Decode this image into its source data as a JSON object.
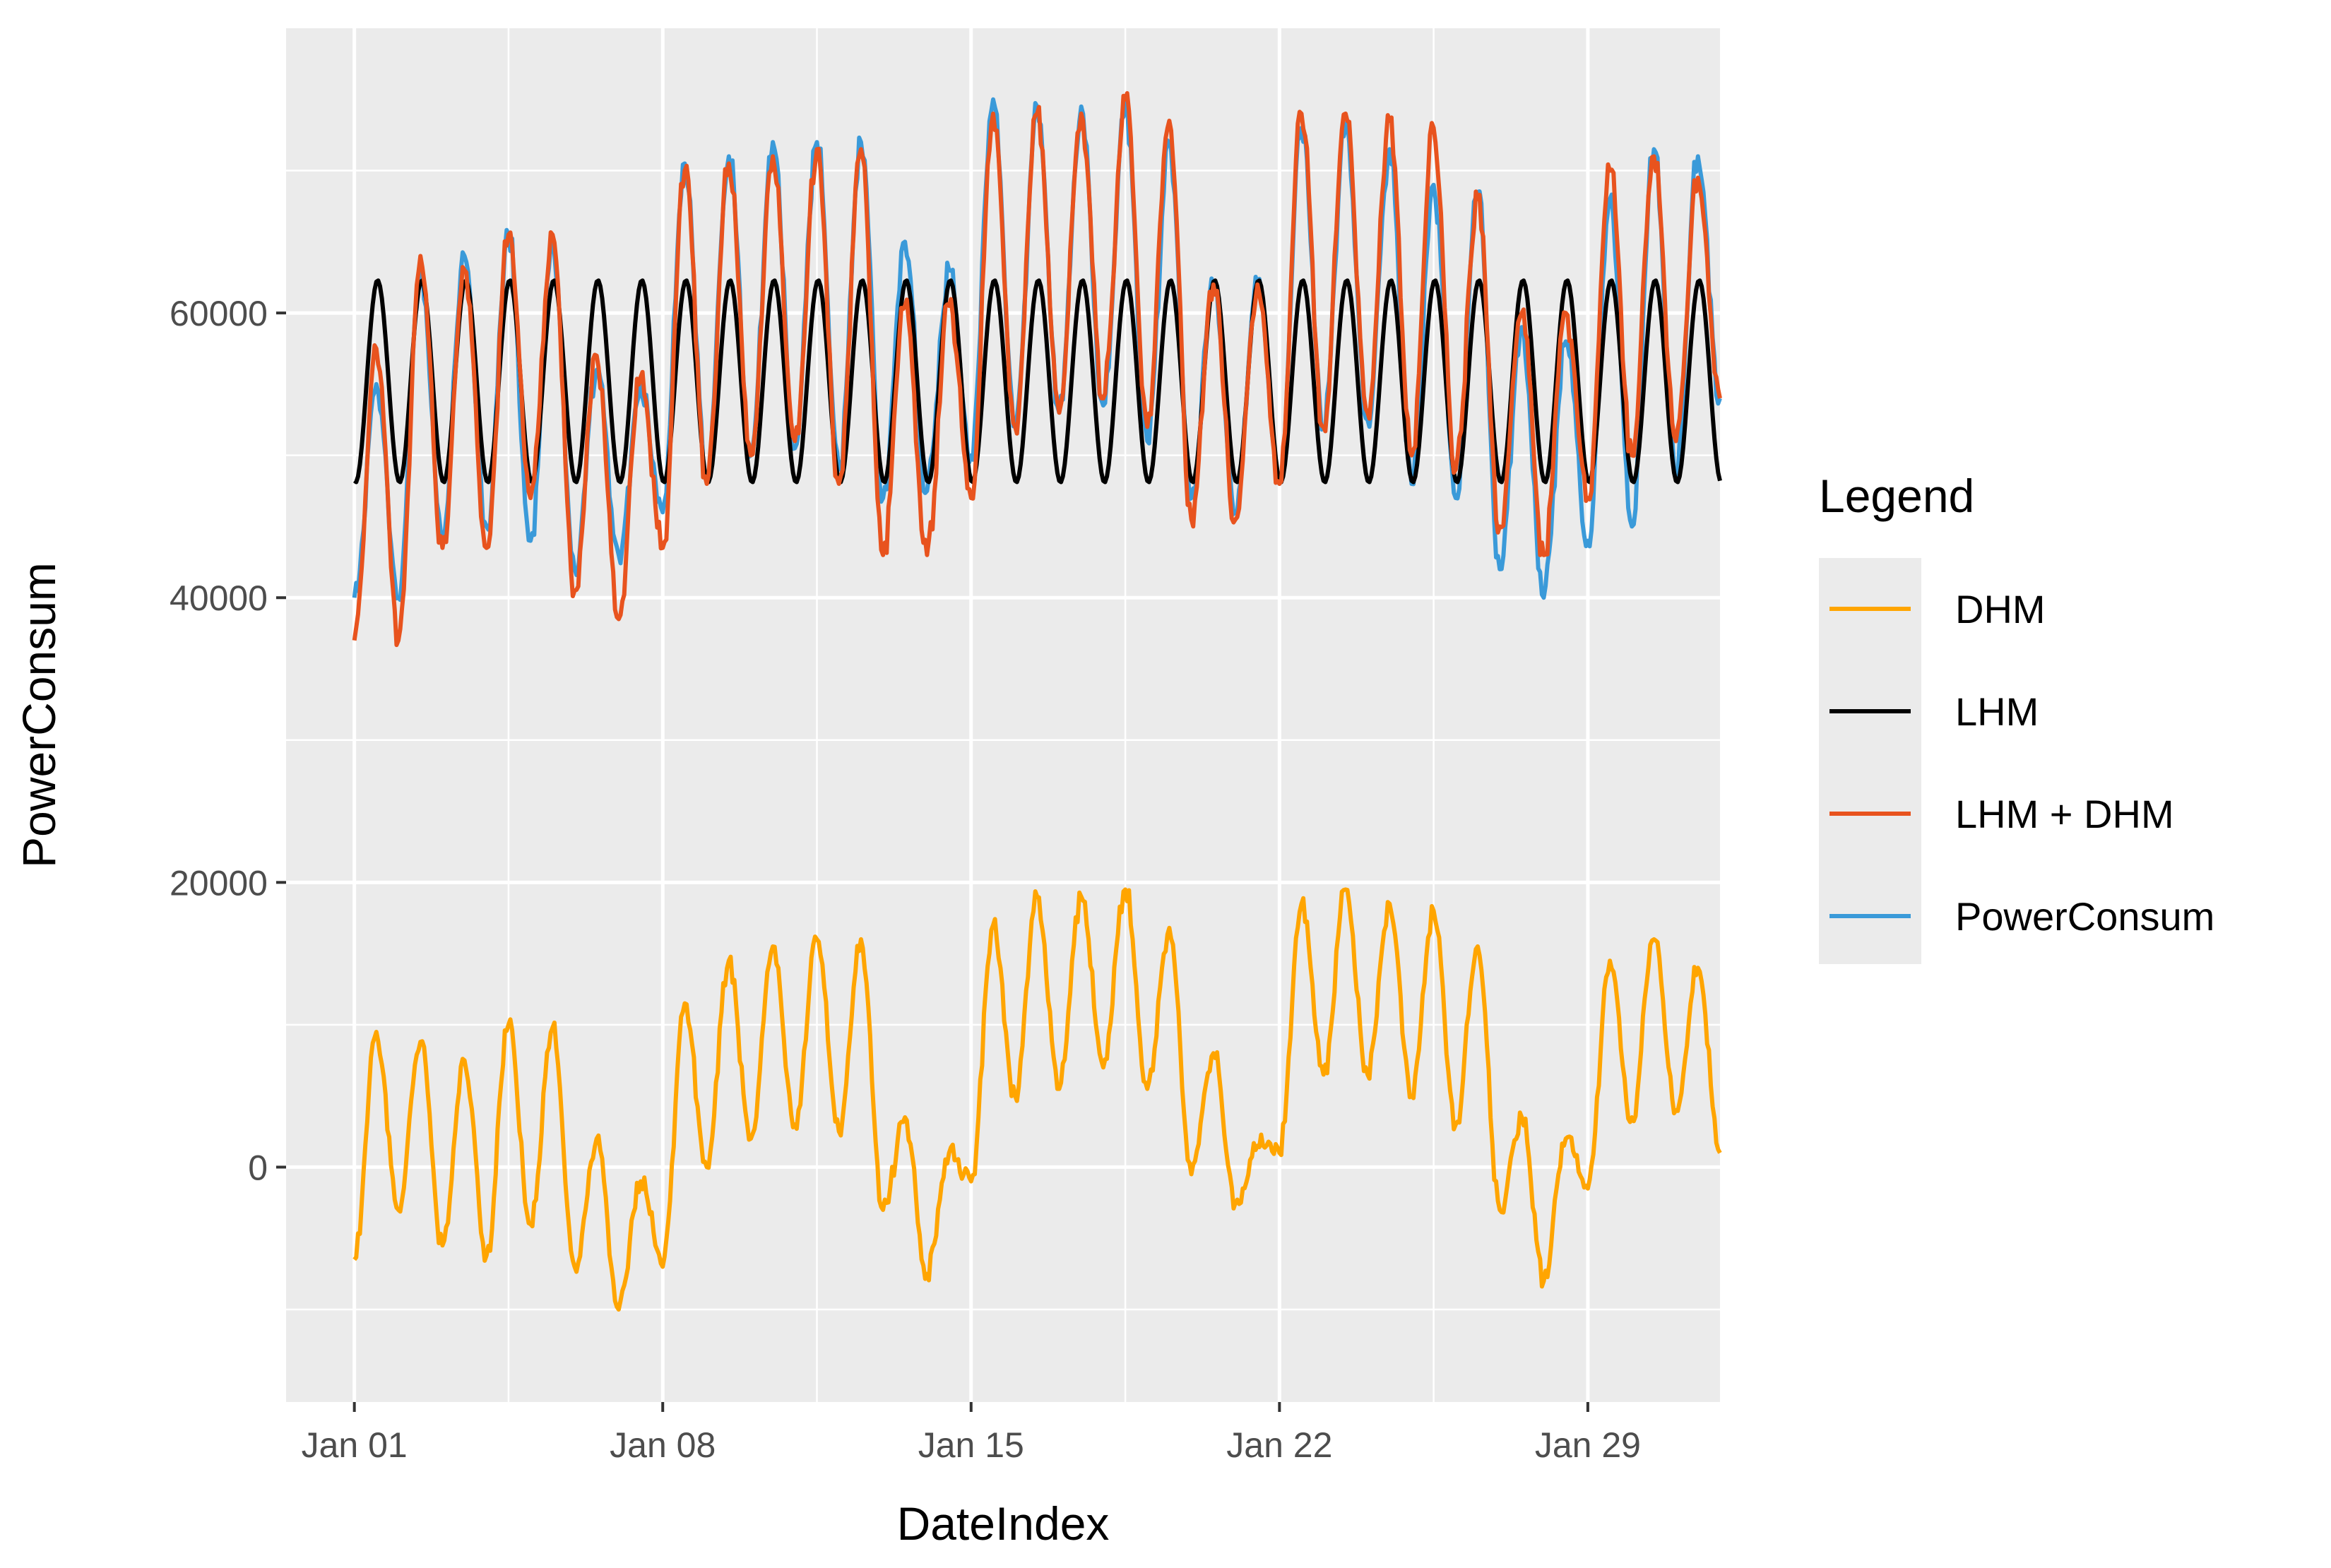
{
  "chart_data": {
    "type": "line",
    "xlabel": "DateIndex",
    "ylabel": "PowerConsum",
    "x_tick_labels": [
      "Jan 01",
      "Jan 08",
      "Jan 15",
      "Jan 22",
      "Jan 29"
    ],
    "x_tick_days": [
      1,
      8,
      15,
      22,
      29
    ],
    "y_ticks": [
      0,
      20000,
      40000,
      60000
    ],
    "y_tick_labels": [
      "0",
      "20000",
      "40000",
      "60000"
    ],
    "xlim": [
      -0.55,
      32.0
    ],
    "ylim": [
      -16500,
      80000
    ],
    "x_start": "Jan 01 00:00",
    "x_end": "Jan 31 23:00",
    "x_unit": "day of January",
    "grid": true,
    "legend": {
      "title": "Legend",
      "position": "right",
      "entries": [
        "DHM",
        "LHM",
        "LHM + DHM",
        "PowerConsum"
      ]
    },
    "series": [
      {
        "name": "DHM",
        "color": "#FFA500",
        "x": [
          1,
          1.5,
          2,
          2.5,
          3,
          3.5,
          4,
          4.5,
          5,
          5.5,
          6,
          6.5,
          7,
          7.5,
          8,
          8.5,
          9,
          9.5,
          10,
          10.5,
          11,
          11.5,
          12,
          12.5,
          13,
          13.5,
          14,
          14.5,
          15,
          15.5,
          16,
          16.5,
          17,
          17.5,
          18,
          18.5,
          19,
          19.5,
          20,
          20.5,
          21,
          21.5,
          22,
          22.5,
          23,
          23.5,
          24,
          24.5,
          25,
          25.5,
          26,
          26.5,
          27,
          27.5,
          28,
          28.5,
          29,
          29.5,
          30,
          30.5,
          31,
          31.5,
          32
        ],
        "values": [
          -6500,
          9500,
          -3000,
          8800,
          -5500,
          7500,
          -6200,
          10000,
          -4000,
          9800,
          -7000,
          2000,
          -10000,
          -1000,
          -7000,
          11500,
          0,
          14500,
          2000,
          15500,
          3000,
          16000,
          2500,
          16000,
          -3000,
          3500,
          -7500,
          1000,
          -1000,
          17000,
          5000,
          19000,
          5500,
          19000,
          7000,
          19500,
          5500,
          16800,
          -500,
          8000,
          -2500,
          1500,
          1000,
          18500,
          6500,
          19500,
          6500,
          18500,
          5000,
          18000,
          3000,
          15500,
          -3000,
          3500,
          -8000,
          2000,
          -1500,
          14500,
          3500,
          16000,
          4000,
          14000,
          1000
        ],
        "peak_note": "peak/trough sequence, half-day resolution"
      },
      {
        "name": "LHM",
        "color": "#000000",
        "mean": 55200,
        "amplitude": 7100,
        "period_days": 1
      },
      {
        "name": "LHM + DHM",
        "color": "#E8531E",
        "x": [
          1,
          1.5,
          2,
          2.5,
          3,
          3.5,
          4,
          4.5,
          5,
          5.5,
          6,
          6.5,
          7,
          7.5,
          8,
          8.5,
          9,
          9.5,
          10,
          10.5,
          11,
          11.5,
          12,
          12.5,
          13,
          13.5,
          14,
          14.5,
          15,
          15.5,
          16,
          16.5,
          17,
          17.5,
          18,
          18.5,
          19,
          19.5,
          20,
          20.5,
          21,
          21.5,
          22,
          22.5,
          23,
          23.5,
          24,
          24.5,
          25,
          25.5,
          26,
          26.5,
          27,
          27.5,
          28,
          28.5,
          29,
          29.5,
          30,
          30.5,
          31,
          31.5,
          32
        ],
        "values": [
          37000,
          57500,
          37000,
          64000,
          43500,
          63000,
          43500,
          65500,
          47000,
          65500,
          40500,
          57000,
          38500,
          55500,
          43500,
          70000,
          48000,
          70500,
          50000,
          71000,
          51000,
          71500,
          48000,
          71500,
          43000,
          60500,
          43000,
          60500,
          47000,
          74000,
          52000,
          74000,
          53000,
          74000,
          54000,
          75000,
          52000,
          73500,
          45500,
          62000,
          45500,
          62000,
          48000,
          74000,
          52000,
          74000,
          53000,
          73500,
          50000,
          73000,
          49000,
          68000,
          45000,
          60000,
          43000,
          60000,
          47000,
          70000,
          50000,
          71000,
          51000,
          69500,
          54000
        ]
      },
      {
        "name": "PowerConsum",
        "color": "#3A9AD9",
        "x": [
          1,
          1.5,
          2,
          2.5,
          3,
          3.5,
          4,
          4.5,
          5,
          5.5,
          6,
          6.5,
          7,
          7.5,
          8,
          8.5,
          9,
          9.5,
          10,
          10.5,
          11,
          11.5,
          12,
          12.5,
          13,
          13.5,
          14,
          14.5,
          15,
          15.5,
          16,
          16.5,
          17,
          17.5,
          18,
          18.5,
          19,
          19.5,
          20,
          20.5,
          21,
          21.5,
          22,
          22.5,
          23,
          23.5,
          24,
          24.5,
          25,
          25.5,
          26,
          26.5,
          27,
          27.5,
          28,
          28.5,
          29,
          29.5,
          30,
          30.5,
          31,
          31.5,
          32
        ],
        "values": [
          40000,
          55000,
          40000,
          63000,
          44000,
          64000,
          45000,
          65500,
          44000,
          65000,
          42000,
          56000,
          43000,
          55000,
          46000,
          70500,
          48500,
          71000,
          50000,
          72000,
          50500,
          72000,
          49000,
          72000,
          47000,
          65000,
          47500,
          63000,
          50000,
          75000,
          52000,
          74500,
          53000,
          74500,
          53500,
          74500,
          51000,
          72000,
          47000,
          62000,
          46000,
          62000,
          48000,
          73000,
          52000,
          73000,
          52500,
          71500,
          48000,
          69000,
          47000,
          68500,
          42000,
          59000,
          40000,
          58000,
          44000,
          68000,
          45000,
          71500,
          49000,
          71000,
          54000
        ]
      }
    ]
  }
}
